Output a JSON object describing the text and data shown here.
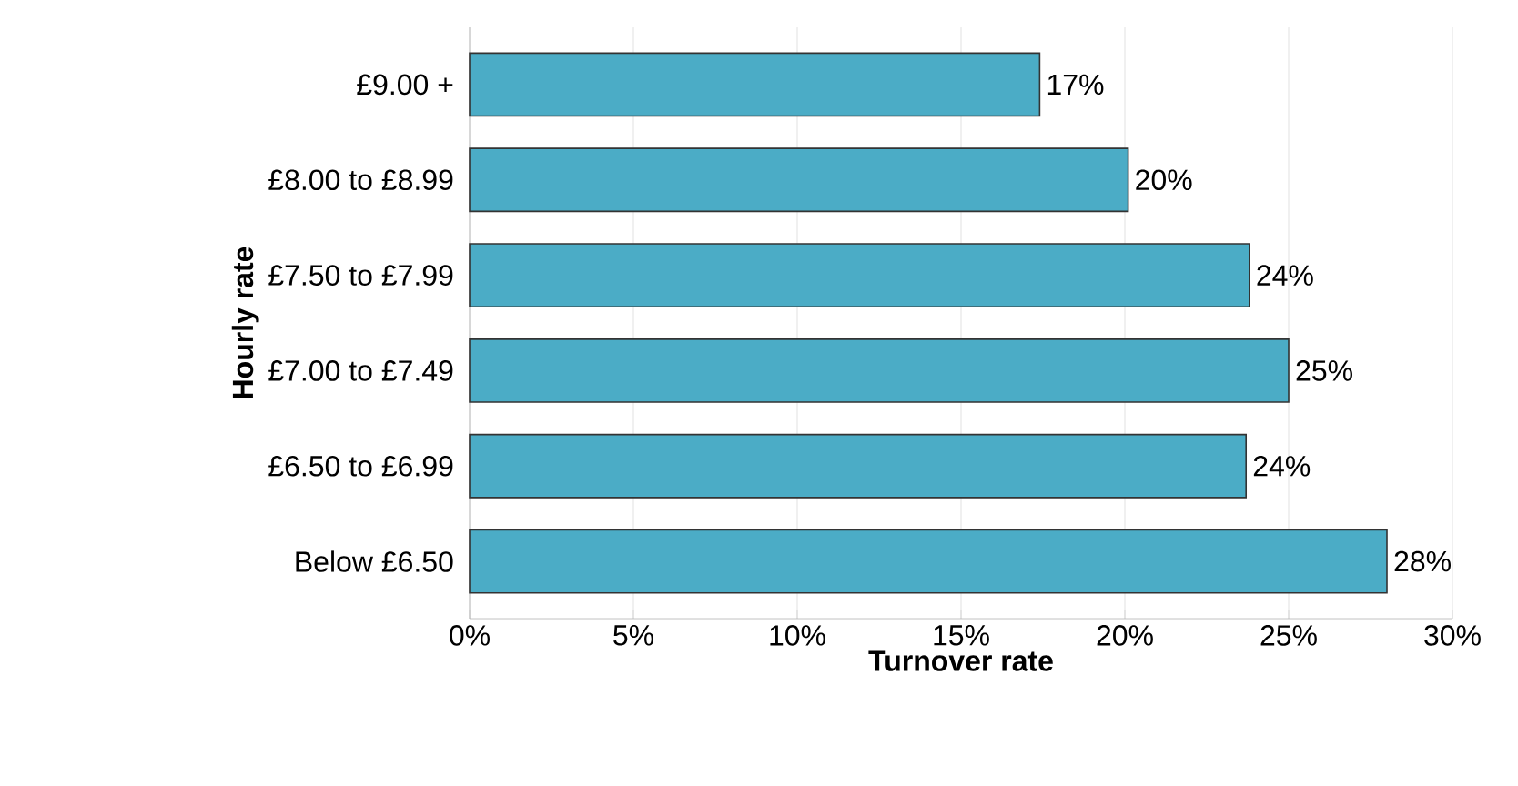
{
  "chart_data": {
    "type": "bar",
    "orientation": "horizontal",
    "xlabel": "Turnover rate",
    "ylabel": "Hourly rate",
    "categories": [
      "£9.00 +",
      "£8.00 to £8.99",
      "£7.50 to £7.99",
      "£7.00 to £7.49",
      "£6.50 to £6.99",
      "Below £6.50"
    ],
    "values": [
      17.4,
      20.1,
      23.8,
      25.0,
      23.7,
      28.0
    ],
    "value_labels": [
      "17%",
      "20%",
      "24%",
      "25%",
      "24%",
      "28%"
    ],
    "color": "#4bacc6",
    "xlim": [
      0,
      30
    ],
    "xticks": [
      {
        "value": 0,
        "label": "0%"
      },
      {
        "value": 5,
        "label": "5%"
      },
      {
        "value": 10,
        "label": "10%"
      },
      {
        "value": 15,
        "label": "15%"
      },
      {
        "value": 20,
        "label": "20%"
      },
      {
        "value": 25,
        "label": "25%"
      },
      {
        "value": 30,
        "label": "30%"
      }
    ],
    "grid": "x"
  }
}
